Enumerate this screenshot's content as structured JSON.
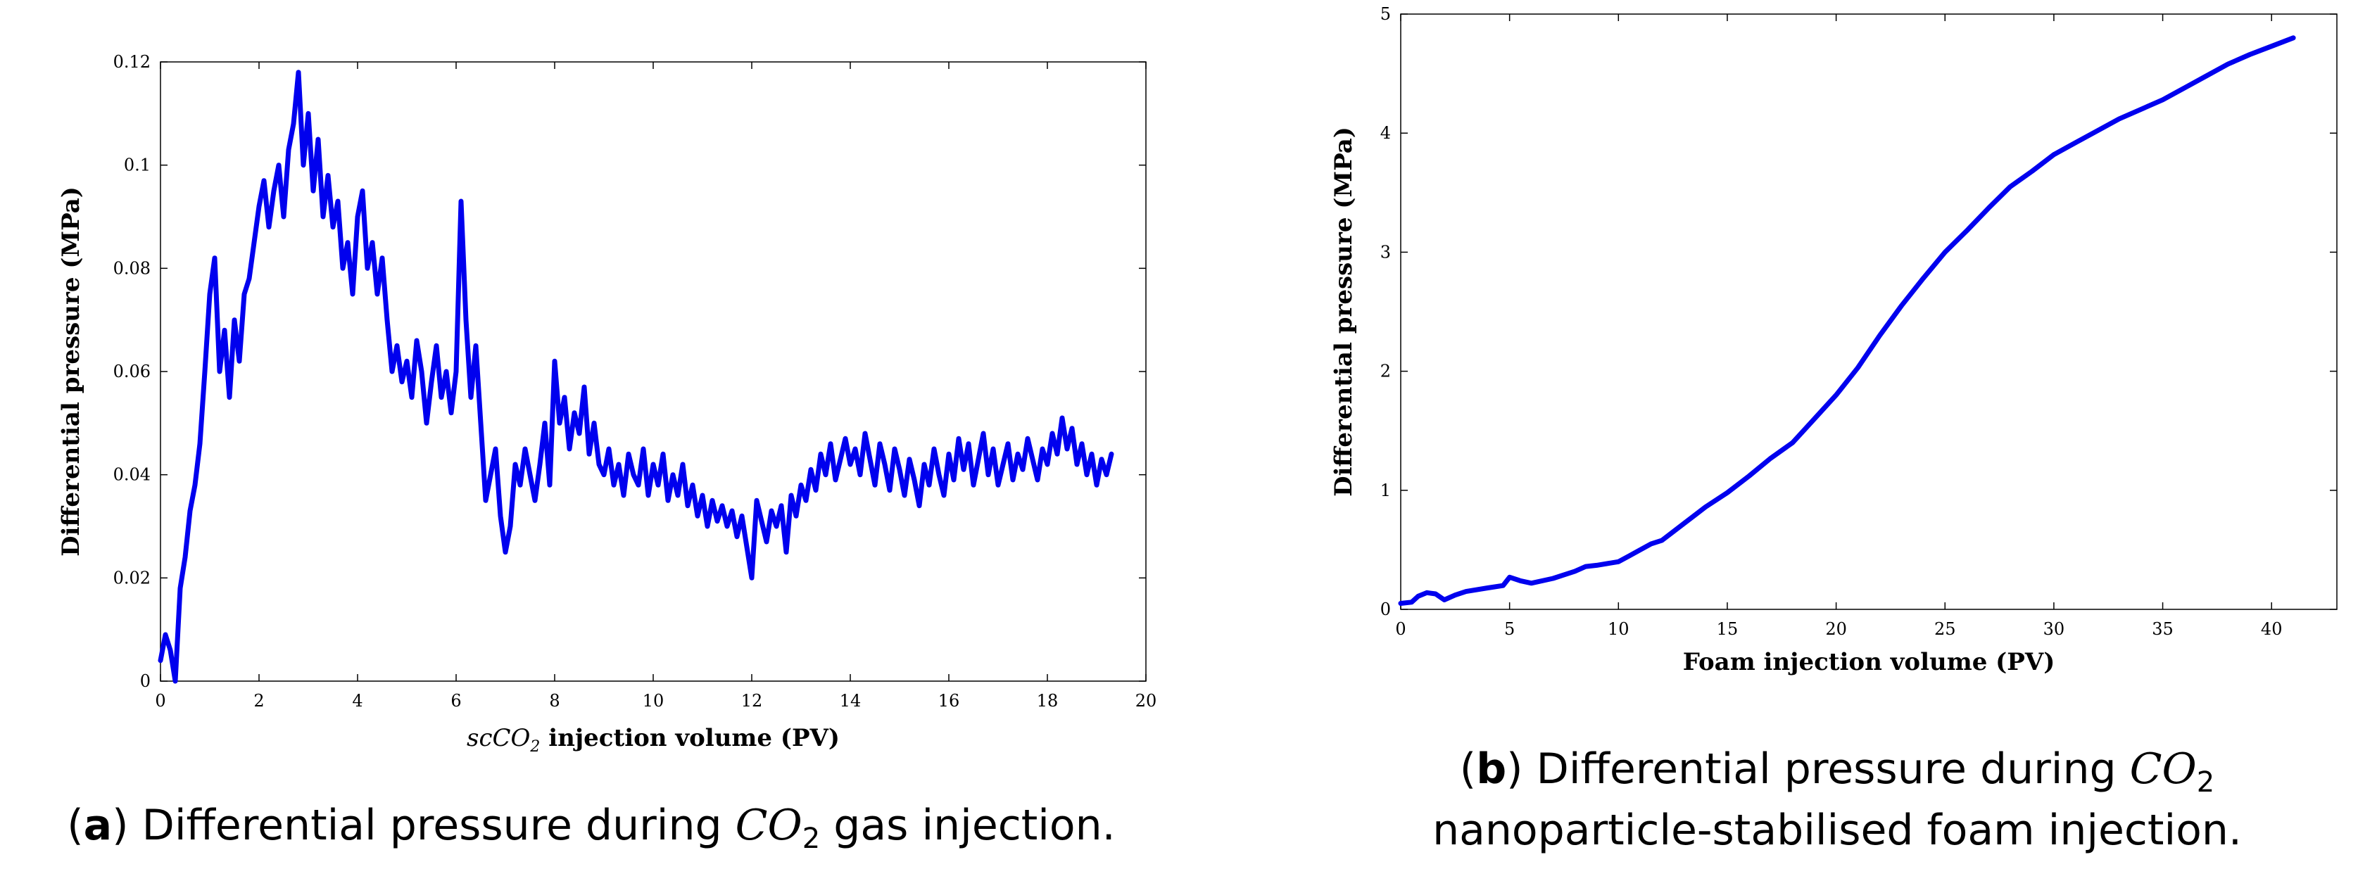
{
  "chart_data": [
    {
      "id": "a",
      "type": "line",
      "title": "",
      "xlabel_italic": "scCO",
      "xlabel_sub": "2",
      "xlabel_rest": " injection volume (PV)",
      "ylabel": "Differential pressure (MPa)",
      "xlim": [
        0,
        20
      ],
      "ylim": [
        0,
        0.12
      ],
      "xticks": [
        "0",
        "2",
        "4",
        "6",
        "8",
        "10",
        "12",
        "14",
        "16",
        "18",
        "20"
      ],
      "yticks": [
        "0",
        "0.02",
        "0.04",
        "0.06",
        "0.08",
        "0.1",
        "0.12"
      ],
      "line_color": "#0000ee",
      "series": [
        {
          "name": "scCO2 injection",
          "x": [
            0,
            0.1,
            0.2,
            0.3,
            0.4,
            0.5,
            0.6,
            0.7,
            0.8,
            0.9,
            1.0,
            1.1,
            1.2,
            1.3,
            1.4,
            1.5,
            1.6,
            1.7,
            1.8,
            1.9,
            2.0,
            2.1,
            2.2,
            2.3,
            2.4,
            2.5,
            2.6,
            2.7,
            2.8,
            2.9,
            3.0,
            3.1,
            3.2,
            3.3,
            3.4,
            3.5,
            3.6,
            3.7,
            3.8,
            3.9,
            4.0,
            4.1,
            4.2,
            4.3,
            4.4,
            4.5,
            4.6,
            4.7,
            4.8,
            4.9,
            5.0,
            5.1,
            5.2,
            5.3,
            5.4,
            5.5,
            5.6,
            5.7,
            5.8,
            5.9,
            6.0,
            6.1,
            6.2,
            6.3,
            6.4,
            6.5,
            6.6,
            6.7,
            6.8,
            6.9,
            7.0,
            7.1,
            7.2,
            7.3,
            7.4,
            7.5,
            7.6,
            7.7,
            7.8,
            7.9,
            8.0,
            8.1,
            8.2,
            8.3,
            8.4,
            8.5,
            8.6,
            8.7,
            8.8,
            8.9,
            9.0,
            9.1,
            9.2,
            9.3,
            9.4,
            9.5,
            9.6,
            9.7,
            9.8,
            9.9,
            10.0,
            10.1,
            10.2,
            10.3,
            10.4,
            10.5,
            10.6,
            10.7,
            10.8,
            10.9,
            11.0,
            11.1,
            11.2,
            11.3,
            11.4,
            11.5,
            11.6,
            11.7,
            11.8,
            11.9,
            12.0,
            12.1,
            12.2,
            12.3,
            12.4,
            12.5,
            12.6,
            12.7,
            12.8,
            12.9,
            13.0,
            13.1,
            13.2,
            13.3,
            13.4,
            13.5,
            13.6,
            13.7,
            13.8,
            13.9,
            14.0,
            14.1,
            14.2,
            14.3,
            14.4,
            14.5,
            14.6,
            14.7,
            14.8,
            14.9,
            15.0,
            15.1,
            15.2,
            15.3,
            15.4,
            15.5,
            15.6,
            15.7,
            15.8,
            15.9,
            16.0,
            16.1,
            16.2,
            16.3,
            16.4,
            16.5,
            16.6,
            16.7,
            16.8,
            16.9,
            17.0,
            17.1,
            17.2,
            17.3,
            17.4,
            17.5,
            17.6,
            17.7,
            17.8,
            17.9,
            18.0,
            18.1,
            18.2,
            18.3,
            18.4,
            18.5,
            18.6,
            18.7,
            18.8,
            18.9,
            19.0,
            19.1,
            19.2,
            19.3
          ],
          "y": [
            0.004,
            0.009,
            0.006,
            0.0,
            0.018,
            0.024,
            0.033,
            0.038,
            0.046,
            0.06,
            0.075,
            0.082,
            0.06,
            0.068,
            0.055,
            0.07,
            0.062,
            0.075,
            0.078,
            0.085,
            0.092,
            0.097,
            0.088,
            0.095,
            0.1,
            0.09,
            0.103,
            0.108,
            0.118,
            0.1,
            0.11,
            0.095,
            0.105,
            0.09,
            0.098,
            0.088,
            0.093,
            0.08,
            0.085,
            0.075,
            0.09,
            0.095,
            0.08,
            0.085,
            0.075,
            0.082,
            0.07,
            0.06,
            0.065,
            0.058,
            0.062,
            0.055,
            0.066,
            0.06,
            0.05,
            0.058,
            0.065,
            0.055,
            0.06,
            0.052,
            0.06,
            0.093,
            0.07,
            0.055,
            0.065,
            0.05,
            0.035,
            0.04,
            0.045,
            0.032,
            0.025,
            0.03,
            0.042,
            0.038,
            0.045,
            0.04,
            0.035,
            0.042,
            0.05,
            0.038,
            0.062,
            0.05,
            0.055,
            0.045,
            0.052,
            0.048,
            0.057,
            0.044,
            0.05,
            0.042,
            0.04,
            0.045,
            0.038,
            0.042,
            0.036,
            0.044,
            0.04,
            0.038,
            0.045,
            0.036,
            0.042,
            0.038,
            0.044,
            0.035,
            0.04,
            0.036,
            0.042,
            0.034,
            0.038,
            0.032,
            0.036,
            0.03,
            0.035,
            0.031,
            0.034,
            0.03,
            0.033,
            0.028,
            0.032,
            0.026,
            0.02,
            0.035,
            0.031,
            0.027,
            0.033,
            0.03,
            0.034,
            0.025,
            0.036,
            0.032,
            0.038,
            0.035,
            0.041,
            0.037,
            0.044,
            0.04,
            0.046,
            0.039,
            0.043,
            0.047,
            0.042,
            0.045,
            0.04,
            0.048,
            0.043,
            0.038,
            0.046,
            0.042,
            0.037,
            0.045,
            0.041,
            0.036,
            0.043,
            0.039,
            0.034,
            0.042,
            0.038,
            0.045,
            0.04,
            0.036,
            0.044,
            0.039,
            0.047,
            0.041,
            0.046,
            0.038,
            0.043,
            0.048,
            0.04,
            0.045,
            0.038,
            0.042,
            0.046,
            0.039,
            0.044,
            0.041,
            0.047,
            0.043,
            0.039,
            0.045,
            0.042,
            0.048,
            0.044,
            0.051,
            0.045,
            0.049,
            0.042,
            0.046,
            0.04,
            0.044,
            0.038,
            0.043,
            0.04,
            0.044
          ]
        }
      ]
    },
    {
      "id": "b",
      "type": "line",
      "title": "",
      "xlabel": "Foam injection volume (PV)",
      "ylabel": "Differential pressure (MPa)",
      "xlim": [
        0,
        43
      ],
      "ylim": [
        0,
        5
      ],
      "xticks": [
        0,
        5,
        10,
        15,
        20,
        25,
        30,
        35,
        40
      ],
      "xtick_labels": [
        "0",
        "5",
        "10",
        "15",
        "20",
        "25",
        "30",
        "35",
        "40"
      ],
      "yticks": [
        0,
        1,
        2,
        3,
        4,
        5
      ],
      "ytick_labels": [
        "0",
        "1",
        "2",
        "3",
        "4",
        "5"
      ],
      "line_color": "#0000ee",
      "series": [
        {
          "name": "Foam injection",
          "x": [
            0,
            0.5,
            0.8,
            1.2,
            1.6,
            2.0,
            2.5,
            3,
            4,
            4.7,
            5,
            5.5,
            6,
            7,
            7.5,
            8,
            8.5,
            9,
            10,
            10.5,
            11,
            11.5,
            12,
            13,
            14,
            15,
            16,
            17,
            18,
            19,
            20,
            21,
            22,
            23,
            24,
            25,
            26,
            27,
            28,
            29,
            30,
            31,
            32,
            33,
            34,
            35,
            36,
            37,
            38,
            39,
            40,
            41
          ],
          "y": [
            0.05,
            0.06,
            0.11,
            0.14,
            0.13,
            0.08,
            0.12,
            0.15,
            0.18,
            0.2,
            0.27,
            0.24,
            0.22,
            0.26,
            0.29,
            0.32,
            0.36,
            0.37,
            0.4,
            0.45,
            0.5,
            0.55,
            0.58,
            0.72,
            0.86,
            0.98,
            1.12,
            1.27,
            1.4,
            1.6,
            1.8,
            2.03,
            2.3,
            2.55,
            2.78,
            3.0,
            3.18,
            3.37,
            3.55,
            3.68,
            3.82,
            3.92,
            4.02,
            4.12,
            4.2,
            4.28,
            4.38,
            4.48,
            4.58,
            4.66,
            4.73,
            4.8
          ]
        }
      ]
    }
  ],
  "captions": {
    "a": {
      "tag": "a",
      "pre": ") Differential pressure during ",
      "chem": "CO",
      "sub": "2",
      "post": " gas injection."
    },
    "b": {
      "tag": "b",
      "pre": ") Differential pressure during ",
      "chem": "CO",
      "sub": "2",
      "line2": "nanoparticle-stabilised foam injection."
    }
  }
}
